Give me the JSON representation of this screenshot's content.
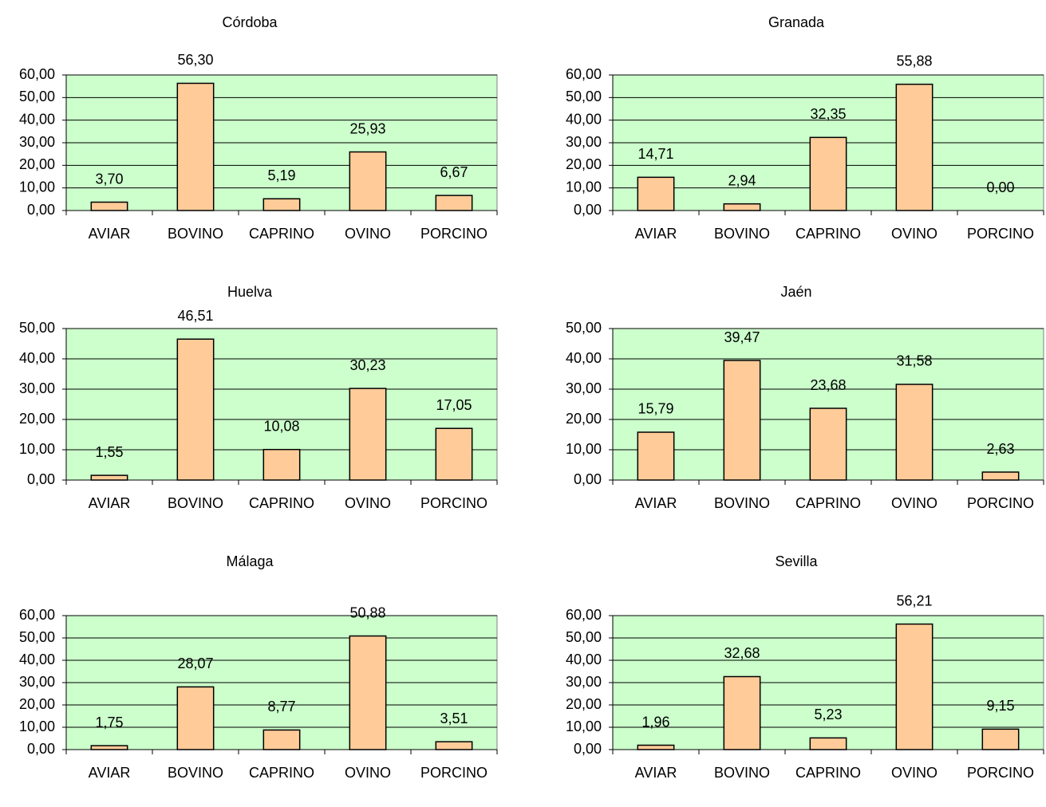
{
  "chart_data": [
    {
      "type": "bar",
      "title": "Córdoba",
      "categories": [
        "AVIAR",
        "BOVINO",
        "CAPRINO",
        "OVINO",
        "PORCINO"
      ],
      "values": [
        3.7,
        56.3,
        5.19,
        25.93,
        6.67
      ],
      "value_labels": [
        "3,70",
        "56,30",
        "5,19",
        "25,93",
        "6,67"
      ],
      "color": "#ffcc99",
      "ylim": [
        0,
        60
      ],
      "yticks": [
        {
          "value": 0,
          "label": "0,00"
        },
        {
          "value": 10,
          "label": "10,00"
        },
        {
          "value": 20,
          "label": "20,00"
        },
        {
          "value": 30,
          "label": "30,00"
        },
        {
          "value": 40,
          "label": "40,00"
        },
        {
          "value": 50,
          "label": "50,00"
        },
        {
          "value": 60,
          "label": "60,00"
        }
      ],
      "grid": true
    },
    {
      "type": "bar",
      "title": "Granada",
      "categories": [
        "AVIAR",
        "BOVINO",
        "CAPRINO",
        "OVINO",
        "PORCINO"
      ],
      "values": [
        14.71,
        2.94,
        32.35,
        55.88,
        0.0
      ],
      "value_labels": [
        "14,71",
        "2,94",
        "32,35",
        "55,88",
        "0,00"
      ],
      "color": "#ffcc99",
      "ylim": [
        0,
        60
      ],
      "yticks": [
        {
          "value": 0,
          "label": "0,00"
        },
        {
          "value": 10,
          "label": "10,00"
        },
        {
          "value": 20,
          "label": "20,00"
        },
        {
          "value": 30,
          "label": "30,00"
        },
        {
          "value": 40,
          "label": "40,00"
        },
        {
          "value": 50,
          "label": "50,00"
        },
        {
          "value": 60,
          "label": "60,00"
        }
      ],
      "grid": true
    },
    {
      "type": "bar",
      "title": "Huelva",
      "categories": [
        "AVIAR",
        "BOVINO",
        "CAPRINO",
        "OVINO",
        "PORCINO"
      ],
      "values": [
        1.55,
        46.51,
        10.08,
        30.23,
        17.05
      ],
      "value_labels": [
        "1,55",
        "46,51",
        "10,08",
        "30,23",
        "17,05"
      ],
      "color": "#ffcc99",
      "ylim": [
        0,
        50
      ],
      "yticks": [
        {
          "value": 0,
          "label": "0,00"
        },
        {
          "value": 10,
          "label": "10,00"
        },
        {
          "value": 20,
          "label": "20,00"
        },
        {
          "value": 30,
          "label": "30,00"
        },
        {
          "value": 40,
          "label": "40,00"
        },
        {
          "value": 50,
          "label": "50,00"
        }
      ],
      "grid": true
    },
    {
      "type": "bar",
      "title": "Jaén",
      "categories": [
        "AVIAR",
        "BOVINO",
        "CAPRINO",
        "OVINO",
        "PORCINO"
      ],
      "values": [
        15.79,
        39.47,
        23.68,
        31.58,
        2.63
      ],
      "value_labels": [
        "15,79",
        "39,47",
        "23,68",
        "31,58",
        "2,63"
      ],
      "color": "#ffcc99",
      "ylim": [
        0,
        50
      ],
      "yticks": [
        {
          "value": 0,
          "label": "0,00"
        },
        {
          "value": 10,
          "label": "10,00"
        },
        {
          "value": 20,
          "label": "20,00"
        },
        {
          "value": 30,
          "label": "30,00"
        },
        {
          "value": 40,
          "label": "40,00"
        },
        {
          "value": 50,
          "label": "50,00"
        }
      ],
      "grid": true
    },
    {
      "type": "bar",
      "title": "Málaga",
      "categories": [
        "AVIAR",
        "BOVINO",
        "CAPRINO",
        "OVINO",
        "PORCINO"
      ],
      "values": [
        1.75,
        28.07,
        8.77,
        50.88,
        3.51
      ],
      "value_labels": [
        "1,75",
        "28,07",
        "8,77",
        "50,88",
        "3,51"
      ],
      "color": "#ffcc99",
      "ylim": [
        0,
        60
      ],
      "yticks": [
        {
          "value": 0,
          "label": "0,00"
        },
        {
          "value": 10,
          "label": "10,00"
        },
        {
          "value": 20,
          "label": "20,00"
        },
        {
          "value": 30,
          "label": "30,00"
        },
        {
          "value": 40,
          "label": "40,00"
        },
        {
          "value": 50,
          "label": "50,00"
        },
        {
          "value": 60,
          "label": "60,00"
        }
      ],
      "grid": true
    },
    {
      "type": "bar",
      "title": "Sevilla",
      "categories": [
        "AVIAR",
        "BOVINO",
        "CAPRINO",
        "OVINO",
        "PORCINO"
      ],
      "values": [
        1.96,
        32.68,
        5.23,
        56.21,
        9.15
      ],
      "value_labels": [
        "1,96",
        "32,68",
        "5,23",
        "56,21",
        "9,15"
      ],
      "color": "#ffcc99",
      "ylim": [
        0,
        60
      ],
      "yticks": [
        {
          "value": 0,
          "label": "0,00"
        },
        {
          "value": 10,
          "label": "10,00"
        },
        {
          "value": 20,
          "label": "20,00"
        },
        {
          "value": 30,
          "label": "30,00"
        },
        {
          "value": 40,
          "label": "40,00"
        },
        {
          "value": 50,
          "label": "50,00"
        },
        {
          "value": 60,
          "label": "60,00"
        }
      ],
      "grid": true
    }
  ]
}
